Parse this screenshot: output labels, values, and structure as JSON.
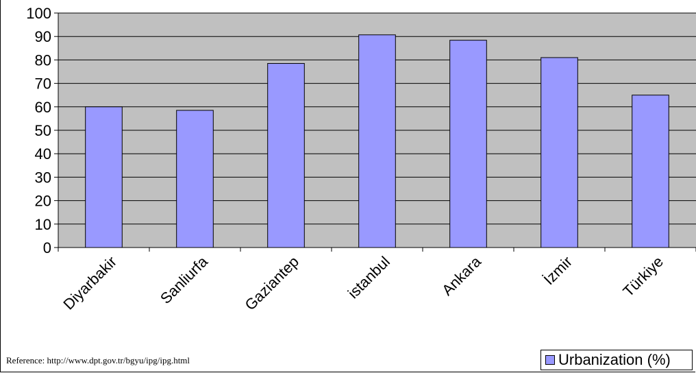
{
  "chart_data": {
    "type": "bar",
    "categories": [
      "Diyarbakir",
      "Sanliurfa",
      "Gaziantep",
      "istanbul",
      "Ankara",
      "İzmir",
      "Türkiye"
    ],
    "series": [
      {
        "name": "Urbanization (%)",
        "values": [
          60,
          58.5,
          78.5,
          90.7,
          88.4,
          81,
          65
        ]
      }
    ],
    "ylim": [
      0,
      100
    ],
    "yticks": [
      0,
      10,
      20,
      30,
      40,
      50,
      60,
      70,
      80,
      90,
      100
    ],
    "grid": true,
    "legend_position": "bottom-right",
    "colors": {
      "bar": "#9999ff",
      "plot_background": "#c0c0c0",
      "gridline": "#000000"
    }
  },
  "reference_text": "Reference: http://www.dpt.gov.tr/bgyu/ipg/ipg.html"
}
